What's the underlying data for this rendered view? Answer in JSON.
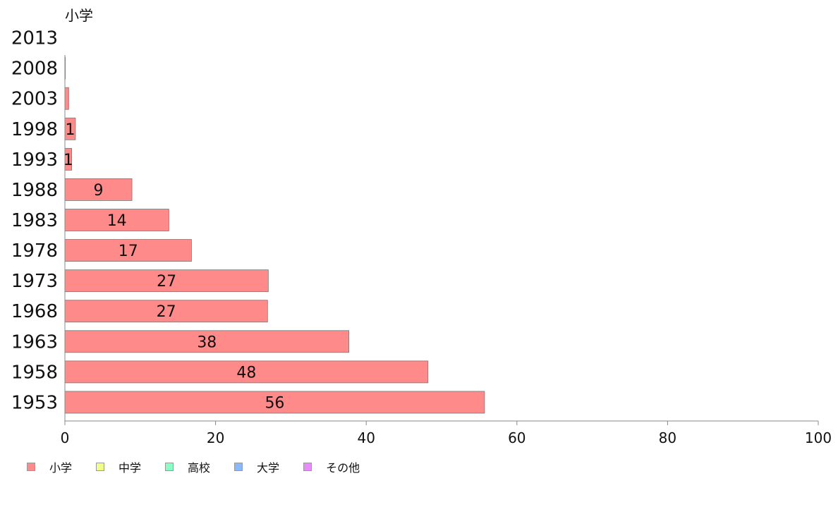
{
  "chart_data": {
    "type": "bar",
    "orientation": "horizontal",
    "title": "小学",
    "categories": [
      "2013",
      "2008",
      "2003",
      "1998",
      "1993",
      "1988",
      "1983",
      "1978",
      "1973",
      "1968",
      "1963",
      "1958",
      "1953"
    ],
    "series": [
      {
        "name": "小学",
        "color": "#ff8a8a",
        "values": [
          0,
          0.05,
          0.5,
          1.4,
          0.9,
          8.9,
          13.8,
          16.8,
          27,
          26.9,
          37.7,
          48.2,
          55.7
        ],
        "labels": [
          "",
          "",
          "",
          "1",
          "1",
          "9",
          "14",
          "17",
          "27",
          "27",
          "38",
          "48",
          "56"
        ]
      }
    ],
    "xlim": [
      0,
      100
    ],
    "xticks": [
      0,
      20,
      40,
      60,
      80,
      100
    ],
    "legend": {
      "placement": "bottom-left",
      "items": [
        {
          "label": "小学",
          "color": "#ff8a8a"
        },
        {
          "label": "中学",
          "color": "#efff8a"
        },
        {
          "label": "高校",
          "color": "#8affc4"
        },
        {
          "label": "大学",
          "color": "#8ab8ff"
        },
        {
          "label": "その他",
          "color": "#ea8aff"
        }
      ]
    },
    "grid": false
  }
}
